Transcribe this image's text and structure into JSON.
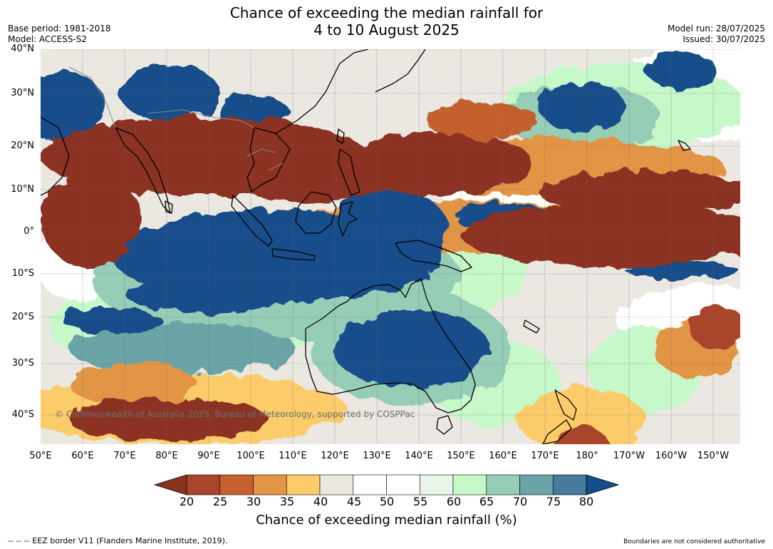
{
  "title_line1": "Chance of exceeding the median rainfall for",
  "title_line2": "4 to 10 August 2025",
  "base_period": "Base period: 1981-2018",
  "model": "Model: ACCESS-S2",
  "model_run": "Model run: 28/07/2025",
  "issued": "Issued: 30/07/2025",
  "copyright": "© Commonwealth of Australia 2025, Bureau of Meteorology, supported by COSPPac",
  "lat_labels": [
    "40°N",
    "30°N",
    "20°N",
    "10°N",
    "0°",
    "10°S",
    "20°S",
    "30°S",
    "40°S"
  ],
  "lon_labels": [
    "50°E",
    "60°E",
    "70°E",
    "80°E",
    "90°E",
    "100°E",
    "110°E",
    "120°E",
    "130°E",
    "140°E",
    "150°E",
    "160°E",
    "170°E",
    "180°",
    "170°W",
    "160°W",
    "150°W"
  ],
  "colorbar": {
    "ticks": [
      "20",
      "25",
      "30",
      "35",
      "40",
      "45",
      "50",
      "55",
      "60",
      "65",
      "70",
      "75",
      "80"
    ],
    "colors": [
      "#8b3220",
      "#a8452a",
      "#c4612f",
      "#e29545",
      "#fccc6b",
      "#ebe8e2",
      "#ffffff",
      "#ffffff",
      "#e9f5e9",
      "#c6f8c9",
      "#96cdb7",
      "#6aa4a6",
      "#467b9b",
      "#134e8a"
    ],
    "label": "Chance of exceeding median rainfall (%)"
  },
  "footer_left": "--  --  -- EEZ border V11 (Flanders Marine Institute, 2019).",
  "footer_right": "Boundaries are not considered authoritative",
  "palette": {
    "very_dry": "#8b3220",
    "dry": "#c4612f",
    "moderate_dry": "#fccc6b",
    "neutral": "#ebe8e2",
    "moderate_wet": "#c6f8c9",
    "wet": "#6aa4a6",
    "very_wet": "#134e8a"
  }
}
